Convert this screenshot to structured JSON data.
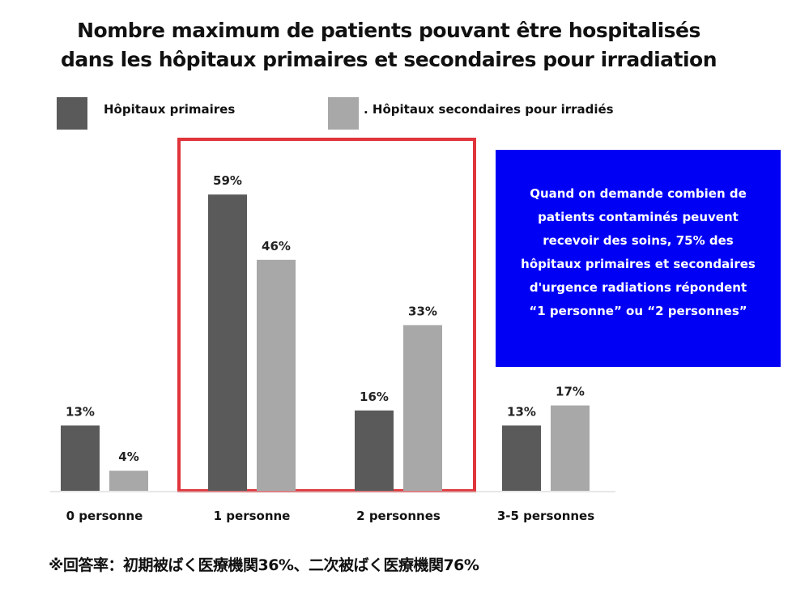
{
  "title_lines": [
    "Nombre maximum de patients pouvant être hospitalisés",
    "dans les hôpitaux primaires et secondaires pour irradiation"
  ],
  "legend": [
    {
      "label": "Hôpitaux primaires",
      "color": "#5a5a5a"
    },
    {
      "label": ". Hôpitaux secondaires pour irradiés",
      "color": "#a8a8a8"
    }
  ],
  "chart_data": {
    "type": "bar",
    "categories": [
      "0 personne",
      "1 personne",
      "2 personnes",
      "3-5 personnes"
    ],
    "series": [
      {
        "name": "Hôpitaux primaires",
        "values": [
          13,
          59,
          16,
          13
        ],
        "labels": [
          "13%",
          "59%",
          "16%",
          "13%"
        ]
      },
      {
        "name": "Hôpitaux secondaires pour irradiés",
        "values": [
          4,
          46,
          33,
          17
        ],
        "labels": [
          "4%",
          "46%",
          "33%",
          "17%"
        ]
      }
    ],
    "ylim": [
      0,
      100
    ],
    "highlight": {
      "categories": [
        "1 personne",
        "2 personnes"
      ],
      "color": "#e0343a"
    },
    "grid": false
  },
  "callout": {
    "lines": [
      "Quand on demande combien de",
      "patients contaminés peuvent",
      "recevoir des soins, 75% des",
      "hôpitaux primaires et secondaires",
      "d'urgence radiations répondent",
      "“1 personne” ou “2 personnes”"
    ],
    "background": "#0000f5"
  },
  "footnote": "※回答率：初期被ばく医療機関36%、二次被ばく医療機関76%"
}
